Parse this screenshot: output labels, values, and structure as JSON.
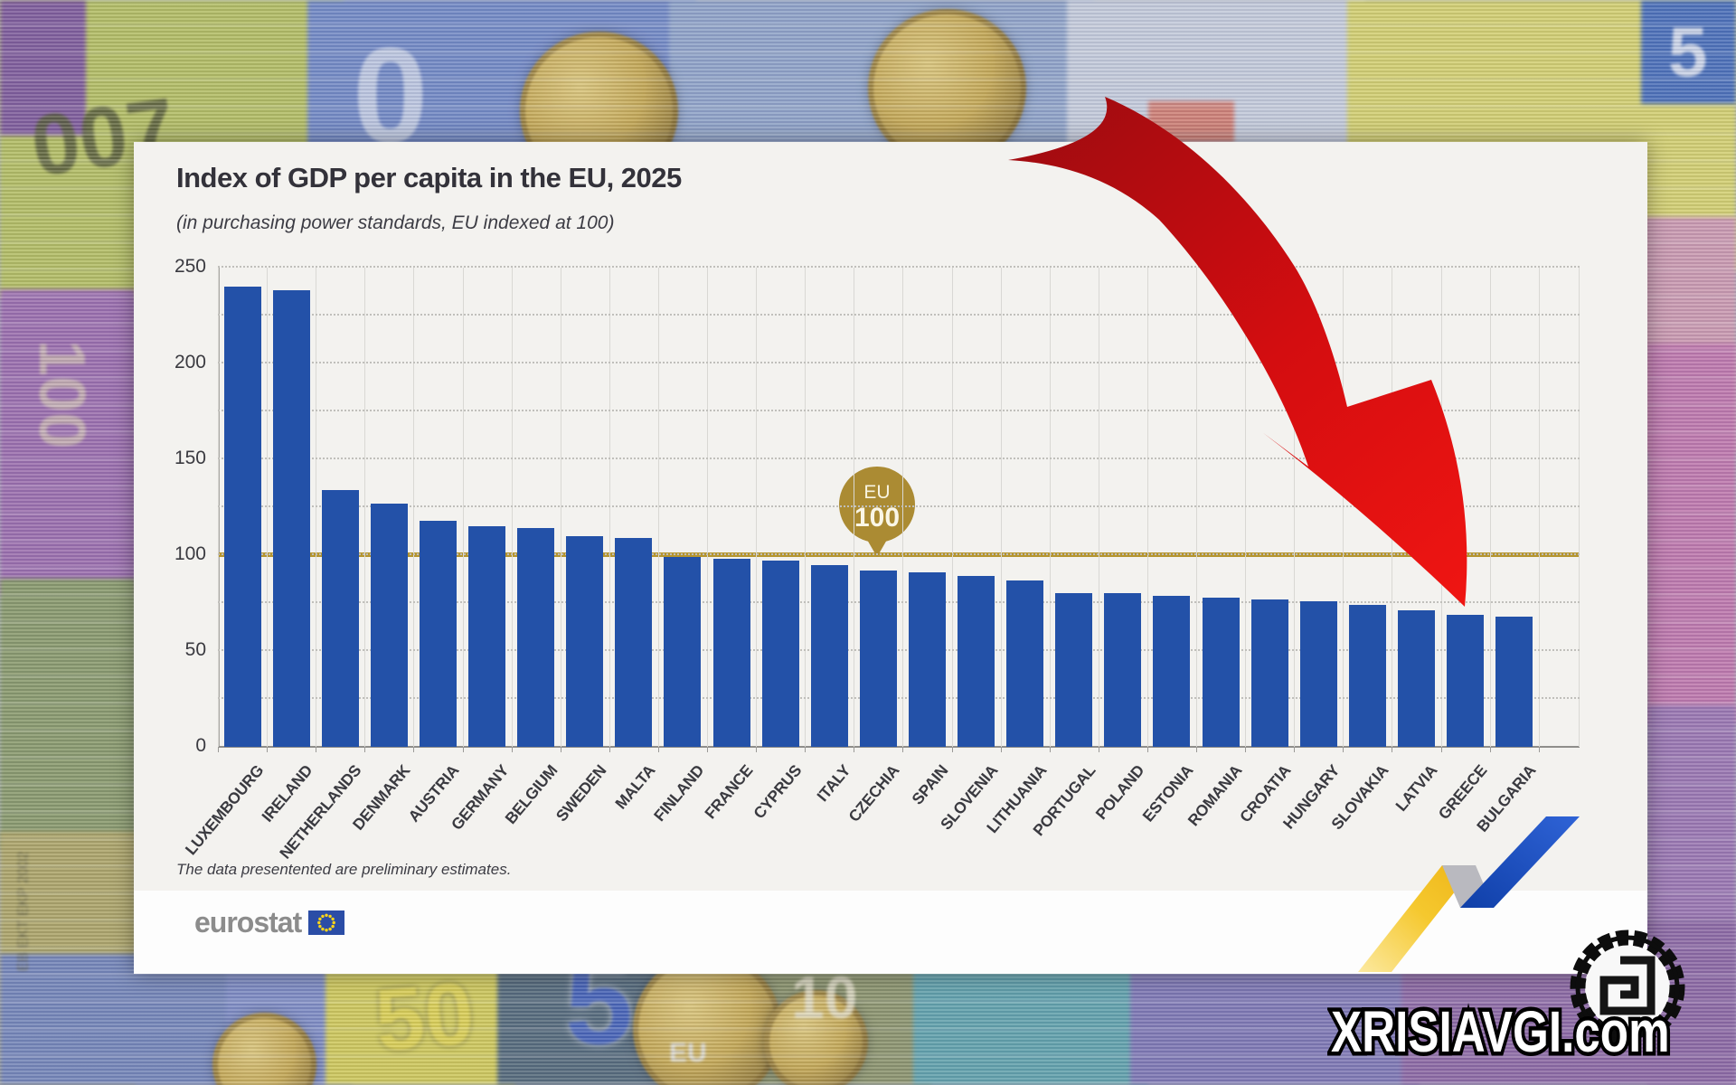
{
  "card": {
    "title": "Index of GDP per capita in the EU, 2025",
    "subtitle": "(in purchasing power standards, EU indexed at 100)",
    "footnote": "The data presentented are preliminary estimates.",
    "logo_text": "eurostat"
  },
  "badge": {
    "line1": "EU",
    "line2": "100"
  },
  "watermark": {
    "text": "XRISIAVGI.com"
  },
  "chart_data": {
    "type": "bar",
    "title": "Index of GDP per capita in the EU, 2025",
    "subtitle": "(in purchasing power standards, EU indexed at 100)",
    "categories": [
      "LUXEMBOURG",
      "IRELAND",
      "NETHERLANDS",
      "DENMARK",
      "AUSTRIA",
      "GERMANY",
      "BELGIUM",
      "SWEDEN",
      "MALTA",
      "FINLAND",
      "FRANCE",
      "CYPRUS",
      "ITALY",
      "CZECHIA",
      "SPAIN",
      "SLOVENIA",
      "LITHUANIA",
      "PORTUGAL",
      "POLAND",
      "ESTONIA",
      "ROMANIA",
      "CROATIA",
      "HUNGARY",
      "SLOVAKIA",
      "LATVIA",
      "GREECE",
      "BULGARIA"
    ],
    "values": [
      240,
      238,
      134,
      127,
      118,
      115,
      114,
      110,
      109,
      99,
      98,
      97,
      95,
      92,
      91,
      89,
      87,
      80,
      80,
      79,
      78,
      77,
      76,
      74,
      71,
      69,
      68
    ],
    "xlabel": "",
    "ylabel": "",
    "ylim": [
      0,
      250
    ],
    "yticks": [
      0,
      50,
      100,
      150,
      200,
      250
    ],
    "grid": true,
    "legend": false,
    "reference_line": {
      "label": "EU",
      "value": 100,
      "color": "#b5952f"
    },
    "bar_color": "#2351a8"
  },
  "colors": {
    "bar_blue": "#2351a8",
    "gold_line": "#b5952f",
    "badge_gold": "#ab8b33",
    "arrow_red": "#d40d10",
    "ribbon_yellow": "#f5c82e",
    "ribbon_blue": "#2a57c9",
    "eu_flag_blue": "#2b4da6",
    "eu_star_yellow": "#ffd617"
  },
  "background": {
    "decor_texts": {
      "tl_number": "007",
      "top_zero": "0",
      "tr_five": "5",
      "left_hundred": "100",
      "left_small": "EB EKT EKP 2002",
      "bottom_fifty": "50",
      "bottom_five": "5",
      "bottom_five_sub": "EU",
      "bottom_ten": "10"
    }
  }
}
